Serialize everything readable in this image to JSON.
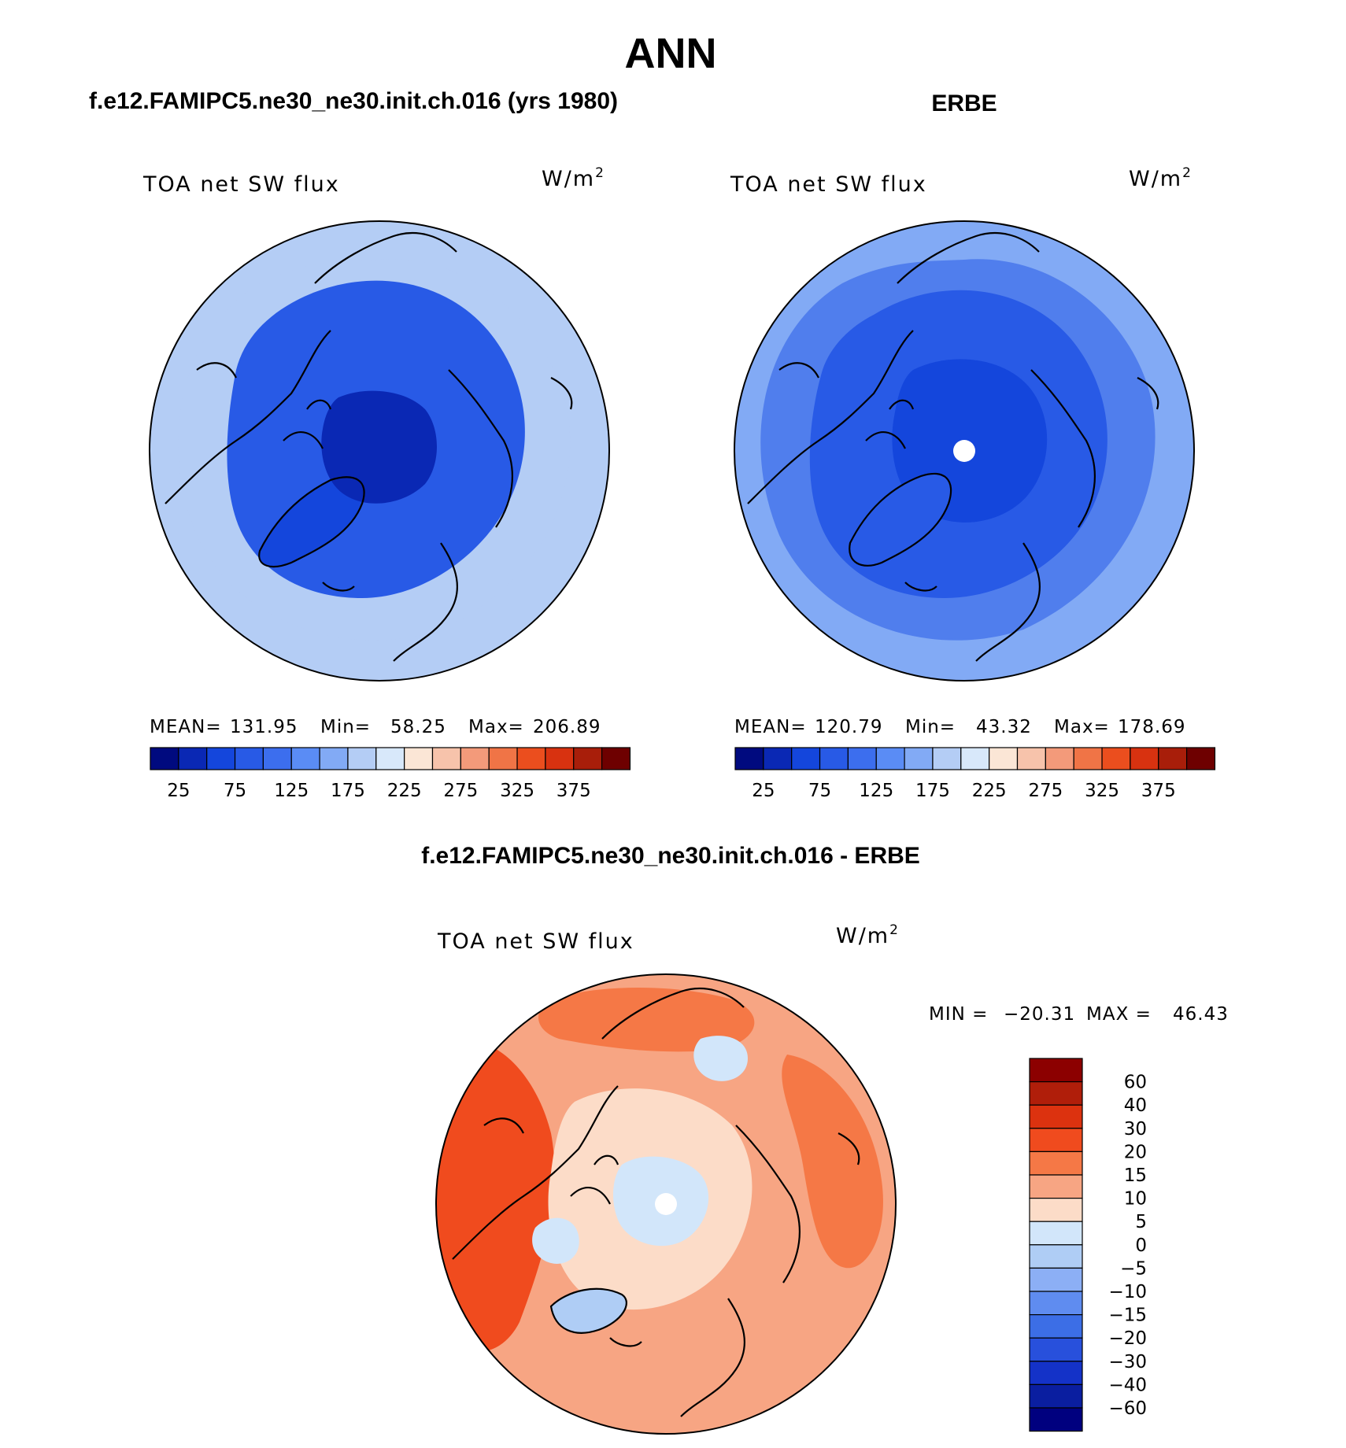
{
  "page_title": "ANN",
  "chart_data": [
    {
      "type": "heatmap",
      "projection": "north-polar-stereographic",
      "header": "f.e12.FAMIPC5.ne30_ne30.init.ch.016 (yrs 1980)",
      "title": "TOA net SW flux",
      "units": "W/m2",
      "units_text": "W/m",
      "units_exponent": "2",
      "stats": {
        "mean_label": "MEAN=",
        "mean": "131.95",
        "min_label": "Min=",
        "min": "58.25",
        "max_label": "Max=",
        "max": "206.89"
      },
      "colorbar": {
        "orientation": "horizontal",
        "colors": [
          "#000a7f",
          "#0a28b4",
          "#1446dc",
          "#285ae6",
          "#3c6eee",
          "#5a8cf5",
          "#82aaf5",
          "#b4cdf5",
          "#d8e8fa",
          "#fbe6d6",
          "#f7c3ab",
          "#f39a7a",
          "#f07446",
          "#eb4e1e",
          "#d83210",
          "#a81e0a",
          "#6e0000"
        ],
        "tick_labels": [
          "25",
          "75",
          "125",
          "175",
          "225",
          "275",
          "325",
          "375"
        ]
      },
      "color_index_field": {
        "center": 1,
        "ring": 3,
        "land": 2,
        "outer": 7
      },
      "missing_pole": false
    },
    {
      "type": "heatmap",
      "projection": "north-polar-stereographic",
      "header": "ERBE",
      "title": "TOA net SW flux",
      "units": "W/m2",
      "units_text": "W/m",
      "units_exponent": "2",
      "stats": {
        "mean_label": "MEAN=",
        "mean": "120.79",
        "min_label": "Min=",
        "min": "43.32",
        "max_label": "Max=",
        "max": "178.69"
      },
      "colorbar": {
        "orientation": "horizontal",
        "colors": [
          "#000a7f",
          "#0a28b4",
          "#1446dc",
          "#285ae6",
          "#3c6eee",
          "#5a8cf5",
          "#82aaf5",
          "#b4cdf5",
          "#d8e8fa",
          "#fbe6d6",
          "#f7c3ab",
          "#f39a7a",
          "#f07446",
          "#eb4e1e",
          "#d83210",
          "#a81e0a",
          "#6e0000"
        ],
        "tick_labels": [
          "25",
          "75",
          "125",
          "175",
          "225",
          "275",
          "325",
          "375"
        ]
      },
      "color_index_field": {
        "center": 2,
        "ring": 3,
        "land": 3,
        "outer": 6
      },
      "missing_pole": true
    },
    {
      "type": "heatmap",
      "projection": "north-polar-stereographic",
      "header": "f.e12.FAMIPC5.ne30_ne30.init.ch.016 - ERBE",
      "title": "TOA net SW flux",
      "units": "W/m2",
      "units_text": "W/m",
      "units_exponent": "2",
      "minmax": {
        "min_label": "MIN =",
        "min": "−20.31",
        "max_label": "MAX =",
        "max": "46.43"
      },
      "colorbar": {
        "orientation": "vertical",
        "colors_top_to_bottom": [
          "#8c0000",
          "#b01e0a",
          "#dc320f",
          "#f04b1e",
          "#f57846",
          "#f7a583",
          "#fcdcc8",
          "#d2e6fa",
          "#afcdf5",
          "#8caff5",
          "#5f8cf0",
          "#3c6ee6",
          "#2850dc",
          "#1432c8",
          "#0a1ea0",
          "#00007f"
        ],
        "tick_labels_top_to_bottom": [
          "60",
          "40",
          "30",
          "20",
          "15",
          "10",
          "5",
          "0",
          "−5",
          "−10",
          "−15",
          "−20",
          "−30",
          "−40",
          "−60"
        ]
      },
      "missing_pole": true
    }
  ]
}
